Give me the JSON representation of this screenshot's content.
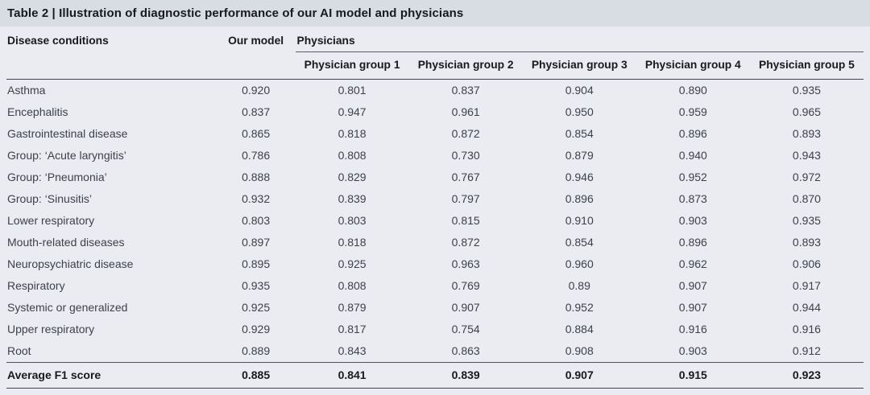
{
  "title": "Table 2 | Illustration of diagnostic performance of our AI model and physicians",
  "colors": {
    "title_strip_bg": "#d8dde4",
    "table_bg": "#eaecf1",
    "heading_text": "#17191d",
    "body_text": "#3d4148",
    "rule_dark": "#42464c",
    "rule_light": "#595e66"
  },
  "table": {
    "col1_header": "Disease conditions",
    "col2_header": "Our model",
    "group_header": "Physicians",
    "group_columns": [
      "Physician group 1",
      "Physician group 2",
      "Physician group 3",
      "Physician group 4",
      "Physician group 5"
    ],
    "rows": [
      {
        "label": "Asthma",
        "our_model": "0.920",
        "physicians": [
          "0.801",
          "0.837",
          "0.904",
          "0.890",
          "0.935"
        ]
      },
      {
        "label": "Encephalitis",
        "our_model": "0.837",
        "physicians": [
          "0.947",
          "0.961",
          "0.950",
          "0.959",
          "0.965"
        ]
      },
      {
        "label": "Gastrointestinal disease",
        "our_model": "0.865",
        "physicians": [
          "0.818",
          "0.872",
          "0.854",
          "0.896",
          "0.893"
        ]
      },
      {
        "label": "Group: ‘Acute laryngitis’",
        "our_model": "0.786",
        "physicians": [
          "0.808",
          "0.730",
          "0.879",
          "0.940",
          "0.943"
        ]
      },
      {
        "label": "Group: ‘Pneumonia’",
        "our_model": "0.888",
        "physicians": [
          "0.829",
          "0.767",
          "0.946",
          "0.952",
          "0.972"
        ]
      },
      {
        "label": "Group: ‘Sinusitis’",
        "our_model": "0.932",
        "physicians": [
          "0.839",
          "0.797",
          "0.896",
          "0.873",
          "0.870"
        ]
      },
      {
        "label": "Lower respiratory",
        "our_model": "0.803",
        "physicians": [
          "0.803",
          "0.815",
          "0.910",
          "0.903",
          "0.935"
        ]
      },
      {
        "label": "Mouth-related diseases",
        "our_model": "0.897",
        "physicians": [
          "0.818",
          "0.872",
          "0.854",
          "0.896",
          "0.893"
        ]
      },
      {
        "label": "Neuropsychiatric disease",
        "our_model": "0.895",
        "physicians": [
          "0.925",
          "0.963",
          "0.960",
          "0.962",
          "0.906"
        ]
      },
      {
        "label": "Respiratory",
        "our_model": "0.935",
        "physicians": [
          "0.808",
          "0.769",
          "0.89",
          "0.907",
          "0.917"
        ]
      },
      {
        "label": "Systemic or generalized",
        "our_model": "0.925",
        "physicians": [
          "0.879",
          "0.907",
          "0.952",
          "0.907",
          "0.944"
        ]
      },
      {
        "label": "Upper respiratory",
        "our_model": "0.929",
        "physicians": [
          "0.817",
          "0.754",
          "0.884",
          "0.916",
          "0.916"
        ]
      },
      {
        "label": "Root",
        "our_model": "0.889",
        "physicians": [
          "0.843",
          "0.863",
          "0.908",
          "0.903",
          "0.912"
        ]
      }
    ],
    "summary_row": {
      "label": "Average F1 score",
      "our_model": "0.885",
      "physicians": [
        "0.841",
        "0.839",
        "0.907",
        "0.915",
        "0.923"
      ]
    }
  }
}
